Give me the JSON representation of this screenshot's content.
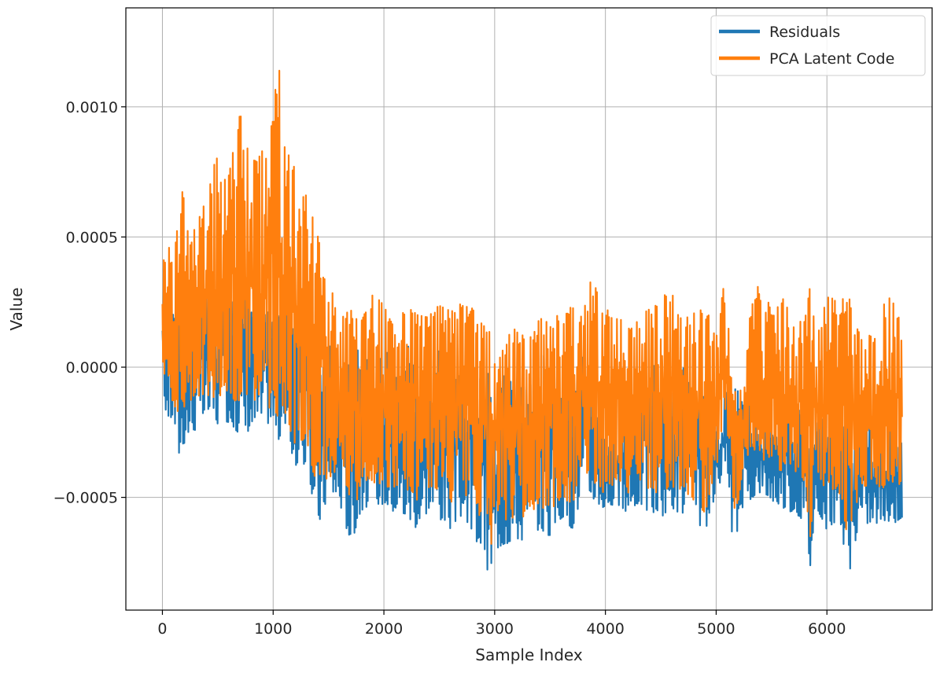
{
  "chart_data": {
    "type": "line",
    "title": "",
    "xlabel": "Sample Index",
    "ylabel": "Value",
    "xlim": [
      -330,
      6950
    ],
    "ylim": [
      -0.000933,
      0.00138
    ],
    "xticks": [
      0,
      1000,
      2000,
      3000,
      4000,
      5000,
      6000
    ],
    "xtick_labels": [
      "0",
      "1000",
      "2000",
      "3000",
      "4000",
      "5000",
      "6000"
    ],
    "yticks": [
      -0.0005,
      0.0,
      0.0005,
      0.001
    ],
    "ytick_labels": [
      "−0.0005",
      "0.0000",
      "0.0005",
      "0.0010"
    ],
    "grid": true,
    "legend_position": "top-right",
    "series": [
      {
        "name": "Residuals",
        "color": "#1f77b4",
        "envelope_x": [
          0,
          50,
          100,
          150,
          200,
          300,
          400,
          500,
          600,
          700,
          800,
          900,
          1000,
          1050,
          1100,
          1200,
          1300,
          1400,
          1500,
          1600,
          1700,
          1800,
          1900,
          2000,
          2100,
          2200,
          2300,
          2400,
          2500,
          2600,
          2700,
          2800,
          2900,
          2950,
          3000,
          3100,
          3200,
          3300,
          3400,
          3500,
          3600,
          3700,
          3800,
          3900,
          4000,
          4100,
          4200,
          4300,
          4400,
          4500,
          4600,
          4700,
          4800,
          4900,
          5000,
          5080,
          5150,
          5200,
          5250,
          5300,
          5400,
          5500,
          5600,
          5700,
          5800,
          5850,
          5900,
          6000,
          6100,
          6200,
          6300,
          6400,
          6500,
          6600,
          6680
        ],
        "upper": [
          0.00034,
          0.00025,
          0.0002,
          0.00025,
          0.00035,
          0.00022,
          0.00028,
          0.0003,
          0.00024,
          0.00032,
          0.00025,
          0.00028,
          0.00022,
          0.00033,
          0.00024,
          0.00015,
          0.00017,
          -8e-05,
          0.0001,
          -5e-05,
          4e-05,
          0.0001,
          -5e-05,
          0.0001,
          -6e-05,
          0.00011,
          -4e-05,
          0.0001,
          6e-05,
          -4e-05,
          -2e-05,
          0.0001,
          -5e-05,
          3e-05,
          -9e-05,
          -2e-05,
          -0.0001,
          -5e-05,
          5e-05,
          4e-05,
          -0.00012,
          -0.0001,
          5e-05,
          -4e-05,
          -0.0002,
          -0.00018,
          -0.00013,
          -6e-05,
          5e-05,
          -6e-05,
          -0.0001,
          1e-05,
          -0.0001,
          -0.00011,
          -0.00022,
          -0.0001,
          -8e-05,
          -9e-05,
          -0.00012,
          -0.00013,
          -0.00016,
          -0.00018,
          -0.00013,
          -0.00015,
          -0.00018,
          -0.00021,
          -0.00022,
          -0.00018,
          -0.00016,
          -0.0002,
          -0.00023,
          -0.00022,
          -0.00025,
          -0.0002,
          -0.0003
        ],
        "lower": [
          -0.00012,
          -0.0002,
          -0.0002,
          -0.00034,
          -0.00029,
          -0.00024,
          -0.00018,
          -0.00022,
          -0.00021,
          -0.00026,
          -0.00024,
          -0.00021,
          -0.00022,
          -0.00028,
          -0.00023,
          -0.00038,
          -0.00037,
          -0.00062,
          -0.00049,
          -0.00052,
          -0.00068,
          -0.00055,
          -0.00052,
          -0.00053,
          -0.00056,
          -0.00058,
          -0.00062,
          -0.00055,
          -0.00058,
          -0.00062,
          -0.00057,
          -0.00066,
          -0.0007,
          -0.00083,
          -0.0007,
          -0.00068,
          -0.00066,
          -0.00067,
          -0.00062,
          -0.00065,
          -0.00058,
          -0.00062,
          -0.00048,
          -0.00051,
          -0.00055,
          -0.00052,
          -0.00058,
          -0.00052,
          -0.00056,
          -0.00058,
          -0.00054,
          -0.00057,
          -0.00057,
          -0.00064,
          -0.00048,
          -0.00045,
          -0.00067,
          -0.00063,
          -0.00051,
          -0.00051,
          -0.00048,
          -0.00051,
          -0.00054,
          -0.00056,
          -0.00059,
          -0.00077,
          -0.00053,
          -0.00063,
          -0.00058,
          -0.0008,
          -0.00058,
          -0.00061,
          -0.00059,
          -0.0006,
          -0.00058
        ]
      },
      {
        "name": "PCA Latent Code",
        "color": "#ff7f0e",
        "envelope_x": [
          0,
          50,
          100,
          150,
          200,
          300,
          400,
          500,
          600,
          700,
          800,
          900,
          1000,
          1050,
          1100,
          1200,
          1300,
          1400,
          1500,
          1600,
          1700,
          1800,
          1900,
          2000,
          2100,
          2200,
          2300,
          2400,
          2500,
          2600,
          2700,
          2800,
          2900,
          2950,
          3000,
          3100,
          3200,
          3300,
          3400,
          3500,
          3600,
          3700,
          3800,
          3900,
          4000,
          4100,
          4200,
          4300,
          4400,
          4500,
          4600,
          4700,
          4800,
          4900,
          5000,
          5080,
          5150,
          5200,
          5250,
          5300,
          5400,
          5500,
          5600,
          5700,
          5800,
          5850,
          5900,
          6000,
          6100,
          6200,
          6300,
          6400,
          6500,
          6600,
          6680
        ],
        "upper": [
          0.00045,
          0.00048,
          0.00038,
          0.00063,
          0.00076,
          0.0005,
          0.00072,
          0.00081,
          0.00074,
          0.00098,
          0.00078,
          0.00083,
          0.00095,
          0.00129,
          0.00085,
          0.00076,
          0.00066,
          0.00051,
          0.00035,
          0.00019,
          0.00022,
          0.00018,
          0.00028,
          0.00024,
          0.00015,
          0.00025,
          0.00021,
          0.00019,
          0.00026,
          0.00021,
          0.00025,
          0.00023,
          0.00016,
          0.00014,
          9e-05,
          0.00017,
          0.00014,
          0.00011,
          0.00018,
          0.00021,
          0.00019,
          0.00024,
          0.00025,
          0.00037,
          0.00022,
          0.00022,
          0.00014,
          0.00024,
          0.00022,
          0.00027,
          0.00029,
          0.00018,
          0.00021,
          0.00025,
          0.00011,
          0.00035,
          -8e-05,
          -8e-05,
          -9e-05,
          0.00021,
          0.00034,
          0.00022,
          0.00027,
          0.00017,
          0.00018,
          0.00034,
          0.0001,
          0.00027,
          0.00026,
          0.00027,
          0.00013,
          0.00012,
          0.00023,
          0.0003,
          0.00014
        ],
        "lower": [
          0.0,
          -8e-05,
          -0.00014,
          -0.00018,
          -0.00017,
          -0.0001,
          -0.00014,
          -0.00012,
          -0.00012,
          -0.00014,
          -0.00013,
          -0.00017,
          -0.00015,
          -0.0002,
          -0.00017,
          -0.0003,
          -0.00028,
          -0.00048,
          -0.00042,
          -0.00042,
          -0.00055,
          -0.00048,
          -0.00044,
          -0.00046,
          -0.00046,
          -0.00048,
          -0.00053,
          -0.00046,
          -0.00048,
          -0.00053,
          -0.00046,
          -0.00055,
          -0.00058,
          -0.00072,
          -0.00062,
          -0.0006,
          -0.00058,
          -0.00058,
          -0.00053,
          -0.00056,
          -0.0005,
          -0.00053,
          -0.0004,
          -0.00045,
          -0.00049,
          -0.00043,
          -0.00049,
          -0.00043,
          -0.00047,
          -0.00049,
          -0.00046,
          -0.00049,
          -0.00051,
          -0.00056,
          -0.0004,
          -0.0002,
          -0.00056,
          -0.00052,
          -0.00035,
          -0.00034,
          -0.00035,
          -0.00038,
          -0.0004,
          -0.00041,
          -0.00044,
          -0.00066,
          -0.00038,
          -0.00049,
          -0.00046,
          -0.00068,
          -0.00045,
          -0.00048,
          -0.00046,
          -0.00047,
          -0.00045
        ]
      }
    ]
  }
}
